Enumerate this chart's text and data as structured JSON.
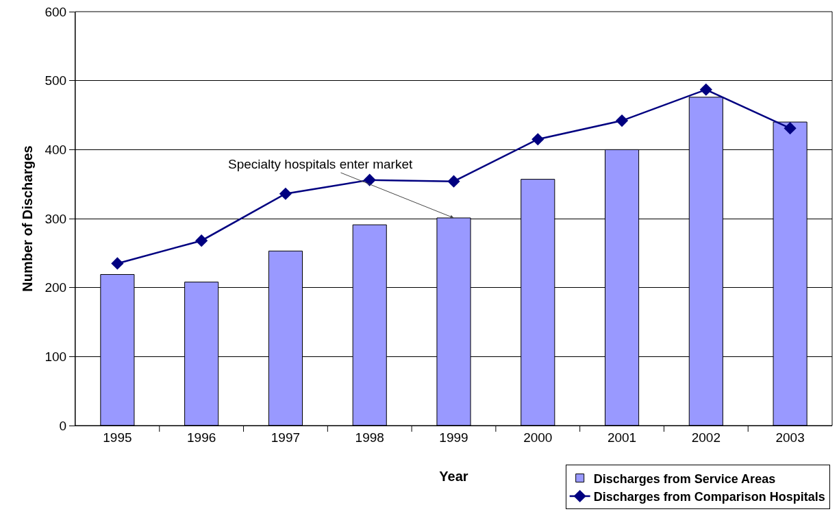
{
  "chart_data": {
    "type": "bar",
    "xlabel": "Year",
    "ylabel": "Number of Discharges",
    "categories": [
      "1995",
      "1996",
      "1997",
      "1998",
      "1999",
      "2000",
      "2001",
      "2002",
      "2003"
    ],
    "series": [
      {
        "name": "Discharges from Service Areas",
        "color": "#9999ff",
        "values": [
          219,
          208,
          253,
          291,
          301,
          357,
          400,
          476,
          440
        ]
      },
      {
        "name": "Discharges from Comparison Hospitals",
        "type": "line",
        "color": "#000080",
        "marker": "diamond",
        "values": [
          235,
          268,
          336,
          356,
          354,
          415,
          442,
          487,
          431
        ]
      }
    ],
    "ylim": [
      0,
      600
    ],
    "yticks": [
      0,
      100,
      200,
      300,
      400,
      500,
      600
    ],
    "grid": "y",
    "legend": "bottom right",
    "annotations": [
      {
        "text": "Specialty hospitals enter market",
        "x": "1999",
        "y": 301
      }
    ]
  }
}
